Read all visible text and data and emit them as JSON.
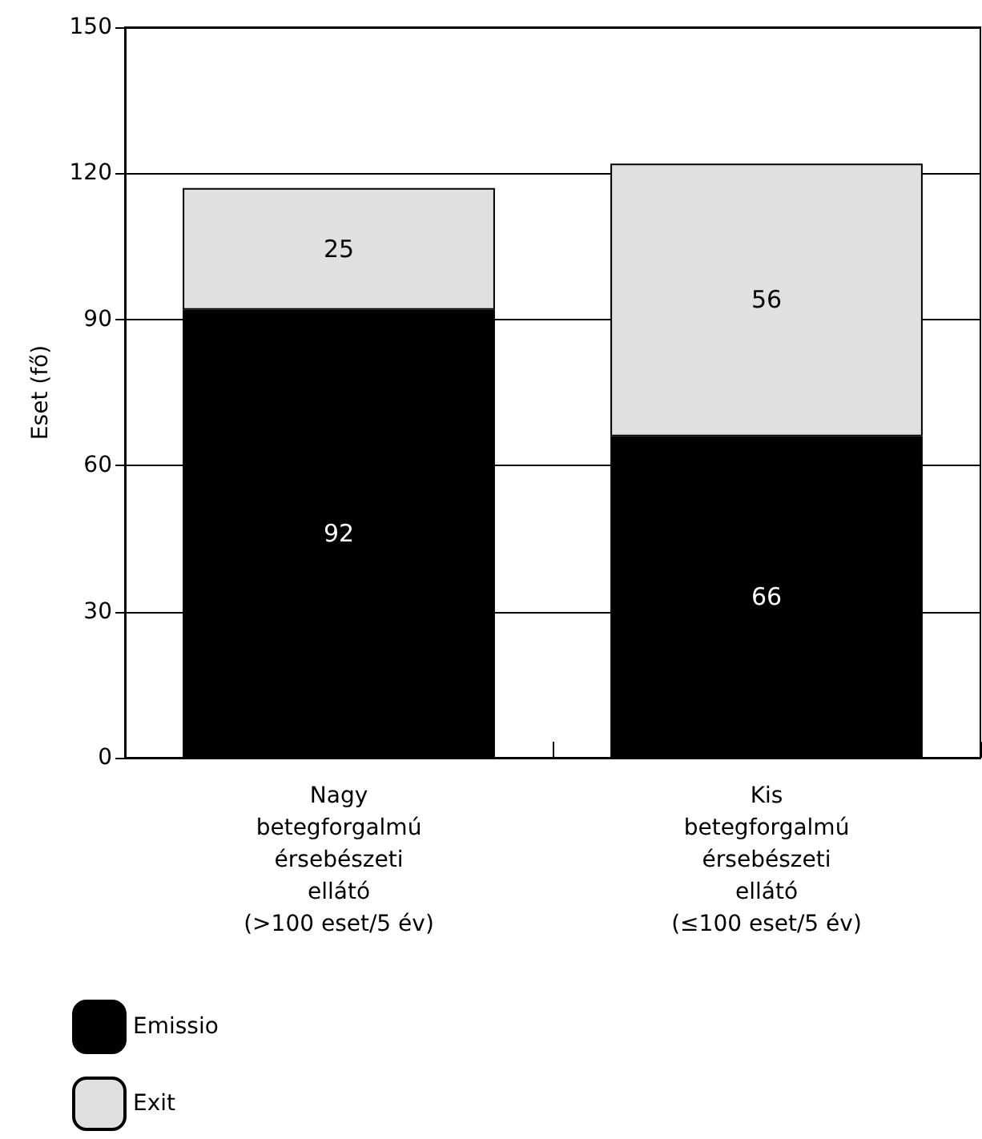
{
  "chart_data": {
    "type": "bar",
    "stacked": true,
    "ylabel": "Eset (fő)",
    "categories": [
      "Nagy\nbetegforgalmú\nérsebészeti\nellátó\n(>100 eset/5 év)",
      "Kis\nbetegforgalmú\nérsebészeti\nellátó\n(≤100 eset/5 év)"
    ],
    "series": [
      {
        "name": "Emissio",
        "color": "#000000",
        "values": [
          92,
          66
        ]
      },
      {
        "name": "Exit",
        "color": "#e0e0e0",
        "values": [
          25,
          56
        ]
      }
    ],
    "ylim": [
      0,
      150
    ],
    "yticks": [
      0,
      30,
      60,
      90,
      120,
      150
    ],
    "grid": "y",
    "data_labels": true,
    "legend": "bottom left"
  }
}
